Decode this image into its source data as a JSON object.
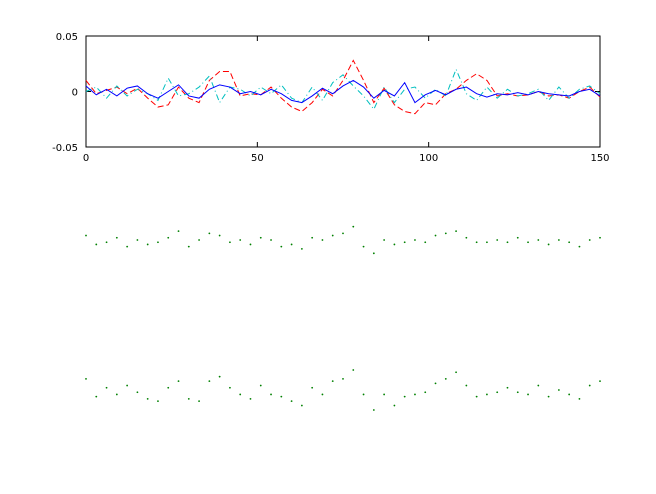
{
  "chart_data": [
    {
      "type": "line",
      "axes": true,
      "xlim": [
        0,
        150
      ],
      "ylim": [
        -0.05,
        0.05
      ],
      "xticks": [
        0,
        50,
        100,
        150
      ],
      "yticks": [
        -0.05,
        0,
        0.05
      ],
      "x": [
        0,
        3,
        6,
        9,
        12,
        15,
        18,
        21,
        24,
        27,
        30,
        33,
        36,
        39,
        42,
        45,
        48,
        51,
        54,
        57,
        60,
        63,
        66,
        69,
        72,
        75,
        78,
        81,
        84,
        87,
        90,
        93,
        96,
        99,
        102,
        105,
        108,
        111,
        114,
        117,
        120,
        123,
        126,
        129,
        132,
        135,
        138,
        141,
        144,
        147,
        150
      ],
      "series": [
        {
          "color": "#ff0000",
          "style": "dashed",
          "values": [
            0.01,
            -0.002,
            0.001,
            0.004,
            -0.002,
            0.003,
            -0.006,
            -0.014,
            -0.012,
            0.004,
            -0.006,
            -0.01,
            0.01,
            0.018,
            0.018,
            -0.004,
            -0.002,
            -0.003,
            0.004,
            -0.006,
            -0.014,
            -0.018,
            -0.01,
            0.002,
            -0.004,
            0.01,
            0.028,
            0.01,
            -0.01,
            0.003,
            -0.012,
            -0.018,
            -0.02,
            -0.01,
            -0.012,
            -0.002,
            0.002,
            0.01,
            0.016,
            0.01,
            -0.004,
            -0.002,
            -0.004,
            -0.003,
            0.0,
            -0.004,
            -0.003,
            -0.006,
            0.0,
            0.004,
            -0.005
          ]
        },
        {
          "color": "#00bfbf",
          "style": "dashdot",
          "values": [
            0.0,
            0.004,
            -0.006,
            0.005,
            -0.004,
            0.002,
            -0.002,
            -0.008,
            0.012,
            -0.004,
            -0.002,
            0.004,
            0.014,
            -0.01,
            0.004,
            0.002,
            -0.004,
            0.004,
            -0.002,
            0.006,
            -0.006,
            -0.01,
            0.004,
            -0.008,
            0.008,
            0.015,
            0.005,
            -0.004,
            -0.016,
            0.004,
            -0.01,
            0.002,
            0.004,
            -0.006,
            0.002,
            -0.004,
            0.02,
            -0.002,
            -0.008,
            0.004,
            -0.006,
            0.002,
            -0.004,
            -0.002,
            0.002,
            -0.008,
            0.004,
            -0.006,
            0.002,
            0.005,
            -0.002
          ]
        },
        {
          "color": "#0000ff",
          "style": "solid",
          "values": [
            0.005,
            -0.003,
            0.002,
            -0.004,
            0.003,
            0.005,
            -0.002,
            -0.006,
            0.0,
            0.006,
            -0.004,
            -0.006,
            0.002,
            0.006,
            0.004,
            -0.002,
            0.0,
            -0.003,
            0.002,
            -0.002,
            -0.008,
            -0.01,
            -0.004,
            0.003,
            -0.002,
            0.005,
            0.01,
            0.004,
            -0.006,
            0.001,
            -0.004,
            0.008,
            -0.01,
            -0.003,
            0.001,
            -0.003,
            0.002,
            0.004,
            -0.002,
            -0.005,
            -0.002,
            -0.003,
            -0.001,
            -0.003,
            0.0,
            -0.002,
            -0.003,
            -0.004,
            0.0,
            0.002,
            -0.004
          ]
        }
      ]
    },
    {
      "type": "scatter",
      "axes": false,
      "xlim": [
        0,
        150
      ],
      "ylim": [
        -0.05,
        0.05
      ],
      "x": [
        0,
        3,
        6,
        9,
        12,
        15,
        18,
        21,
        24,
        27,
        30,
        33,
        36,
        39,
        42,
        45,
        48,
        51,
        54,
        57,
        60,
        63,
        66,
        69,
        72,
        75,
        78,
        81,
        84,
        87,
        90,
        93,
        96,
        99,
        102,
        105,
        108,
        111,
        114,
        117,
        120,
        123,
        126,
        129,
        132,
        135,
        138,
        141,
        144,
        147,
        150
      ],
      "series": [
        {
          "color": "#008000",
          "values": [
            0.004,
            -0.004,
            -0.002,
            0.002,
            -0.006,
            0.0,
            -0.004,
            -0.002,
            0.002,
            0.008,
            -0.006,
            0.0,
            0.006,
            0.004,
            -0.002,
            0.0,
            -0.004,
            0.002,
            0.0,
            -0.006,
            -0.004,
            -0.008,
            0.002,
            0.0,
            0.004,
            0.006,
            0.012,
            -0.006,
            -0.012,
            0.0,
            -0.004,
            -0.002,
            0.0,
            -0.002,
            0.004,
            0.006,
            0.008,
            0.002,
            -0.002,
            -0.002,
            0.0,
            -0.002,
            0.002,
            -0.002,
            0.0,
            -0.004,
            0.0,
            -0.002,
            -0.006,
            0.0,
            0.002
          ]
        }
      ]
    },
    {
      "type": "scatter",
      "axes": false,
      "xlim": [
        0,
        150
      ],
      "ylim": [
        -0.05,
        0.05
      ],
      "x": [
        0,
        3,
        6,
        9,
        12,
        15,
        18,
        21,
        24,
        27,
        30,
        33,
        36,
        39,
        42,
        45,
        48,
        51,
        54,
        57,
        60,
        63,
        66,
        69,
        72,
        75,
        78,
        81,
        84,
        87,
        90,
        93,
        96,
        99,
        102,
        105,
        108,
        111,
        114,
        117,
        120,
        123,
        126,
        129,
        132,
        135,
        138,
        141,
        144,
        147,
        150
      ],
      "series": [
        {
          "color": "#008000",
          "values": [
            0.01,
            -0.006,
            0.002,
            -0.004,
            0.004,
            -0.002,
            -0.008,
            -0.01,
            0.002,
            0.008,
            -0.008,
            -0.01,
            0.008,
            0.012,
            0.002,
            -0.004,
            -0.008,
            0.004,
            -0.004,
            -0.006,
            -0.01,
            -0.014,
            0.002,
            -0.004,
            0.008,
            0.01,
            0.018,
            -0.004,
            -0.018,
            -0.004,
            -0.014,
            -0.006,
            -0.004,
            -0.002,
            0.006,
            0.01,
            0.016,
            0.004,
            -0.006,
            -0.004,
            -0.002,
            0.002,
            -0.002,
            -0.004,
            0.004,
            -0.006,
            0.0,
            -0.004,
            -0.008,
            0.004,
            0.008
          ]
        }
      ]
    }
  ]
}
